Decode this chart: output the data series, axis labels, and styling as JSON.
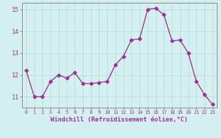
{
  "x": [
    0,
    1,
    2,
    3,
    4,
    5,
    6,
    7,
    8,
    9,
    10,
    11,
    12,
    13,
    14,
    15,
    16,
    17,
    18,
    19,
    20,
    21,
    22,
    23
  ],
  "y": [
    12.2,
    11.0,
    11.0,
    11.7,
    12.0,
    11.85,
    12.1,
    11.6,
    11.6,
    11.65,
    11.7,
    12.45,
    12.85,
    13.6,
    13.65,
    15.0,
    15.05,
    14.75,
    13.55,
    13.6,
    13.0,
    11.7,
    11.1,
    10.65
  ],
  "line_color": "#993399",
  "marker": "D",
  "markersize": 2.5,
  "linewidth": 1.0,
  "bg_color": "#d6f0f0",
  "grid_color": "#b0d8d8",
  "xlabel": "Windchill (Refroidissement éolien,°C)",
  "xlabel_color": "#993399",
  "tick_color": "#993399",
  "ylim": [
    10.5,
    15.3
  ],
  "xlim": [
    -0.5,
    23.5
  ],
  "yticks": [
    11,
    12,
    13,
    14,
    15
  ],
  "xticks": [
    0,
    1,
    2,
    3,
    4,
    5,
    6,
    7,
    8,
    9,
    10,
    11,
    12,
    13,
    14,
    15,
    16,
    17,
    18,
    19,
    20,
    21,
    22,
    23
  ]
}
